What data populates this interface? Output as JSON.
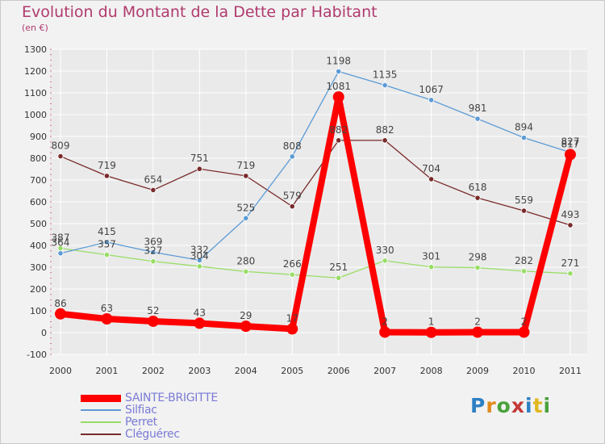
{
  "header": {
    "title": "Evolution du Montant de la Dette par Habitant",
    "subtitle": "(en €)"
  },
  "logo": {
    "text": "Proxiti"
  },
  "colors": {
    "title": "#b03a6e",
    "legend_text": "#7a7ad6",
    "grid": "#ffffff",
    "background": "#f2f2f2",
    "axis_text": "#333333"
  },
  "chart_data": {
    "type": "line",
    "title": "Evolution du Montant de la Dette par Habitant",
    "subtitle": "(en €)",
    "xlabel": "",
    "ylabel": "",
    "ylim": [
      -100,
      1300
    ],
    "y_ticks": [
      -100,
      0,
      100,
      200,
      300,
      400,
      500,
      600,
      700,
      800,
      900,
      1000,
      1100,
      1200,
      1300
    ],
    "grid": true,
    "legend_position": "bottom-left",
    "categories": [
      "2000",
      "2001",
      "2002",
      "2003",
      "2004",
      "2005",
      "2006",
      "2007",
      "2008",
      "2009",
      "2010",
      "2011"
    ],
    "series": [
      {
        "name": "SAINTE-BRIGITTE",
        "color": "#ff0000",
        "values": [
          86,
          63,
          52,
          43,
          29,
          17,
          1081,
          2,
          1,
          2,
          2,
          817
        ]
      },
      {
        "name": "Silfiac",
        "color": "#5b9bd5",
        "values": [
          364,
          415,
          369,
          332,
          525,
          808,
          1198,
          1135,
          1067,
          981,
          894,
          827
        ]
      },
      {
        "name": "Perret",
        "color": "#99dd66",
        "values": [
          387,
          357,
          327,
          304,
          280,
          266,
          251,
          330,
          301,
          298,
          282,
          271
        ]
      },
      {
        "name": "Cléguérec",
        "color": "#7a2a2a",
        "values": [
          809,
          719,
          654,
          751,
          719,
          579,
          882,
          882,
          704,
          618,
          559,
          493
        ]
      }
    ]
  }
}
